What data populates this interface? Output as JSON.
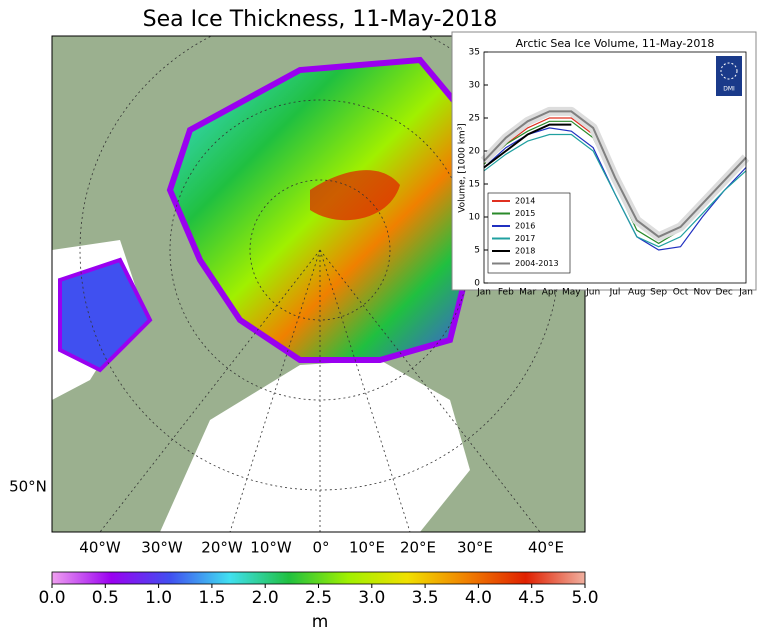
{
  "title": "Sea Ice Thickness, 11-May-2018",
  "map": {
    "lon_labels": [
      "40°W",
      "30°W",
      "20°W",
      "10°W",
      "0°",
      "10°E",
      "20°E",
      "30°E",
      "40°E"
    ],
    "lat_label": "50°N"
  },
  "colorbar": {
    "lim": [
      0,
      5
    ],
    "label": "m",
    "colors": [
      "#f0a0f0",
      "#9a00f0",
      "#4050f0",
      "#40e0f0",
      "#20c040",
      "#a0f000",
      "#f0e000",
      "#f08000",
      "#e02000",
      "#f0b0a0"
    ],
    "ticks": [
      {
        "value": 0,
        "label": "0.0"
      },
      {
        "value": 0.5,
        "label": "0.5"
      },
      {
        "value": 1,
        "label": "1.0"
      },
      {
        "value": 1.5,
        "label": "1.5"
      },
      {
        "value": 2,
        "label": "2.0"
      },
      {
        "value": 2.5,
        "label": "2.5"
      },
      {
        "value": 3,
        "label": "3.0"
      },
      {
        "value": 3.5,
        "label": "3.5"
      },
      {
        "value": 4,
        "label": "4.0"
      },
      {
        "value": 4.5,
        "label": "4.5"
      },
      {
        "value": 5,
        "label": "5.0"
      }
    ]
  },
  "chart_data": {
    "type": "line",
    "title": "Arctic Sea Ice Volume, 11-May-2018",
    "y_label": "Volume, [1000 km³]",
    "logo_text": "DMI",
    "categories": [
      "Jan",
      "Feb",
      "Mar",
      "Apr",
      "May",
      "Jun",
      "Jul",
      "Aug",
      "Sep",
      "Oct",
      "Nov",
      "Dec",
      "Jan"
    ],
    "ylim": [
      0,
      35
    ],
    "yticks": [
      0,
      5,
      10,
      15,
      20,
      25,
      30,
      35
    ],
    "legend": "lower-left",
    "series": [
      {
        "name": "2014",
        "color": "#e03020",
        "values": [
          18,
          21,
          23.5,
          25,
          25,
          22.5,
          15,
          9,
          7.5,
          8.5,
          12,
          15.5,
          19
        ]
      },
      {
        "name": "2015",
        "color": "#2a8a2a",
        "values": [
          18,
          21,
          23,
          24.5,
          24.5,
          22,
          15,
          8,
          6,
          8,
          11.5,
          15,
          18.5
        ]
      },
      {
        "name": "2016",
        "color": "#2030c0",
        "values": [
          17.5,
          20.5,
          22.5,
          23.5,
          23,
          20.5,
          13.5,
          7,
          5,
          5.5,
          10,
          14,
          17.5
        ]
      },
      {
        "name": "2017",
        "color": "#20a0a0",
        "values": [
          17,
          19.5,
          21.5,
          22.5,
          22.5,
          20,
          13.5,
          7,
          5.5,
          7,
          10.5,
          14,
          17
        ]
      },
      {
        "name": "2018",
        "color": "#000000",
        "values": [
          17.5,
          20,
          22.5,
          24,
          24,
          null,
          null,
          null,
          null,
          null,
          null,
          null,
          null
        ]
      },
      {
        "name": "2004-2013",
        "color": "#808080",
        "values": [
          18.5,
          22,
          24.5,
          26,
          26,
          23.5,
          16,
          9.5,
          7,
          8.5,
          12,
          15.5,
          19
        ]
      }
    ]
  }
}
